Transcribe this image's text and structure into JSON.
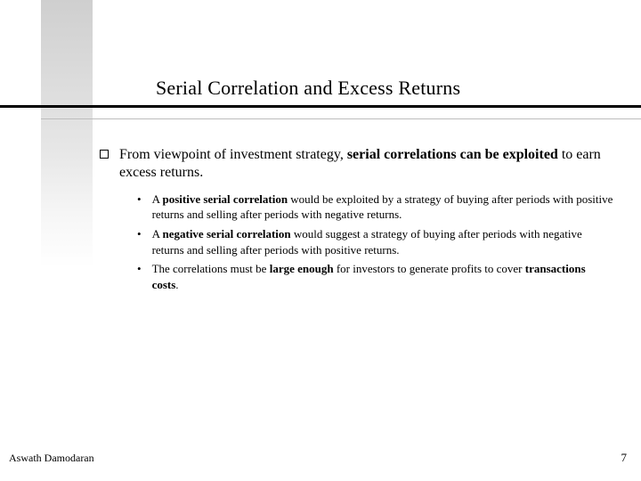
{
  "colors": {
    "background": "#ffffff",
    "text": "#000000",
    "rule_thick": "#000000",
    "rule_thin": "#bdbdbd",
    "sidebar_top": "#cfcfcf",
    "sidebar_bottom": "#ffffff"
  },
  "title": "Serial Correlation and Excess Returns",
  "main": {
    "prefix": "From viewpoint of investment strategy, ",
    "bold1": "serial correlations can be exploited",
    "suffix": " to earn excess returns."
  },
  "sub": [
    {
      "p1": "A ",
      "b1": "positive serial correlation",
      "p2": " would be exploited by a strategy of buying after periods with positive returns and selling after periods with negative returns."
    },
    {
      "p1": "A ",
      "b1": "negative serial correlation",
      "p2": " would suggest a strategy of buying after periods with negative returns and selling after periods with positive returns."
    },
    {
      "p1": "The correlations must be ",
      "b1": "large enough",
      "p2": " for investors to generate profits to cover ",
      "b2": "transactions costs",
      "p3": "."
    }
  ],
  "footer": {
    "author": "Aswath Damodaran",
    "page": "7"
  }
}
